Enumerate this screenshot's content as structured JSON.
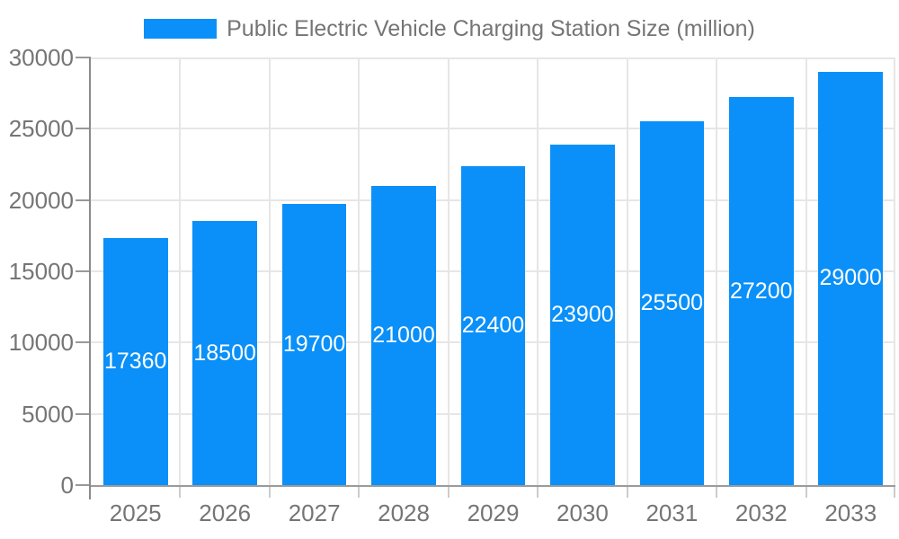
{
  "legend": {
    "label": "Public Electric Vehicle Charging Station Size (million)",
    "swatch_color": "#0a90f8"
  },
  "chart_data": {
    "type": "bar",
    "categories": [
      "2025",
      "2026",
      "2027",
      "2028",
      "2029",
      "2030",
      "2031",
      "2032",
      "2033"
    ],
    "values": [
      17360,
      18500,
      19700,
      21000,
      22400,
      23900,
      25500,
      27200,
      29000
    ],
    "title": "Public Electric Vehicle Charging Station Size (million)",
    "xlabel": "",
    "ylabel": "",
    "ylim": [
      0,
      30000
    ],
    "yticks": [
      0,
      5000,
      10000,
      15000,
      20000,
      25000,
      30000
    ],
    "grid": true,
    "legend_position": "top",
    "value_label_position": "inside-center"
  },
  "colors": {
    "background": "#ffffff",
    "bar": "#0a90f8",
    "text": "#757575",
    "grid": "#e6e6e6",
    "y_axis_line": "#8a8a8a",
    "x_axis_line": "#9b9b9b",
    "y_tick": "#999999",
    "x_tick": "#cccccc",
    "value_label": "#ffffff"
  }
}
